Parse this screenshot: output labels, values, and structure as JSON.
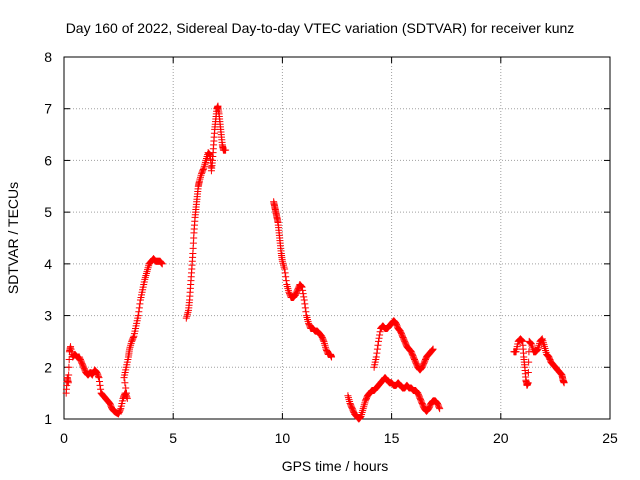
{
  "chart_data": {
    "type": "scatter",
    "title": "Day 160 of 2022, Sidereal Day-to-day VTEC variation (SDTVAR) for receiver kunz",
    "xlabel": "GPS time / hours",
    "ylabel": "SDTVAR / TECUs",
    "xlim": [
      0,
      25
    ],
    "ylim": [
      1,
      8
    ],
    "xticks": [
      "0",
      "5",
      "10",
      "15",
      "20",
      "25"
    ],
    "yticks": [
      "1",
      "2",
      "3",
      "4",
      "5",
      "6",
      "7",
      "8"
    ],
    "grid": true,
    "marker": "+",
    "color": "#ff0000",
    "series": [
      {
        "name": "SDTVAR",
        "segments": [
          [
            [
              0.1,
              1.5
            ],
            [
              0.15,
              1.8
            ],
            [
              0.2,
              1.7
            ],
            [
              0.25,
              2.3
            ],
            [
              0.3,
              2.4
            ],
            [
              0.4,
              2.2
            ],
            [
              0.5,
              2.25
            ],
            [
              0.6,
              2.2
            ],
            [
              0.7,
              2.2
            ],
            [
              0.8,
              2.1
            ],
            [
              0.9,
              2.0
            ],
            [
              1.0,
              1.9
            ],
            [
              1.1,
              1.85
            ],
            [
              1.2,
              1.9
            ],
            [
              1.3,
              1.85
            ],
            [
              1.4,
              1.95
            ],
            [
              1.5,
              1.9
            ],
            [
              1.6,
              1.8
            ],
            [
              1.7,
              1.5
            ],
            [
              1.8,
              1.45
            ],
            [
              1.9,
              1.4
            ],
            [
              2.0,
              1.35
            ],
            [
              2.1,
              1.3
            ],
            [
              2.2,
              1.2
            ],
            [
              2.3,
              1.15
            ],
            [
              2.4,
              1.12
            ],
            [
              2.5,
              1.1
            ],
            [
              2.6,
              1.2
            ],
            [
              2.7,
              1.4
            ],
            [
              2.8,
              1.5
            ],
            [
              2.9,
              1.4
            ],
            [
              2.75,
              1.8
            ],
            [
              2.85,
              2.0
            ],
            [
              2.95,
              2.2
            ],
            [
              3.0,
              2.35
            ],
            [
              3.1,
              2.5
            ],
            [
              3.2,
              2.6
            ],
            [
              3.3,
              2.8
            ],
            [
              3.4,
              3.0
            ],
            [
              3.5,
              3.3
            ],
            [
              3.6,
              3.5
            ],
            [
              3.7,
              3.7
            ],
            [
              3.8,
              3.85
            ],
            [
              3.9,
              4.0
            ],
            [
              4.0,
              4.05
            ],
            [
              4.1,
              4.1
            ],
            [
              4.2,
              4.05
            ],
            [
              4.3,
              4.05
            ],
            [
              4.4,
              4.05
            ],
            [
              4.5,
              4.0
            ]
          ],
          [
            [
              5.6,
              2.95
            ],
            [
              5.7,
              3.1
            ],
            [
              5.75,
              3.3
            ],
            [
              5.8,
              3.6
            ],
            [
              5.85,
              3.9
            ],
            [
              5.9,
              4.2
            ],
            [
              5.95,
              4.6
            ],
            [
              6.0,
              4.9
            ],
            [
              6.05,
              5.1
            ],
            [
              6.1,
              5.3
            ],
            [
              6.15,
              5.5
            ],
            [
              6.2,
              5.6
            ],
            [
              6.3,
              5.75
            ],
            [
              6.4,
              5.85
            ],
            [
              6.5,
              6.0
            ],
            [
              6.6,
              6.15
            ],
            [
              6.7,
              6.1
            ],
            [
              6.75,
              5.8
            ],
            [
              6.8,
              6.0
            ],
            [
              6.85,
              6.3
            ],
            [
              6.9,
              6.6
            ],
            [
              6.95,
              6.8
            ],
            [
              7.0,
              7.0
            ],
            [
              7.05,
              7.05
            ],
            [
              7.1,
              6.9
            ],
            [
              7.15,
              6.7
            ],
            [
              7.2,
              6.5
            ],
            [
              7.25,
              6.3
            ],
            [
              7.3,
              6.2
            ],
            [
              7.4,
              6.2
            ]
          ],
          [
            [
              9.6,
              5.2
            ],
            [
              9.65,
              5.1
            ],
            [
              9.7,
              5.0
            ],
            [
              9.75,
              4.9
            ],
            [
              9.8,
              4.8
            ],
            [
              9.85,
              4.6
            ],
            [
              9.9,
              4.4
            ],
            [
              9.95,
              4.2
            ],
            [
              10.0,
              4.05
            ],
            [
              10.1,
              3.9
            ],
            [
              10.2,
              3.6
            ],
            [
              10.3,
              3.45
            ],
            [
              10.4,
              3.35
            ],
            [
              10.5,
              3.35
            ],
            [
              10.6,
              3.4
            ],
            [
              10.7,
              3.5
            ],
            [
              10.8,
              3.6
            ],
            [
              10.9,
              3.55
            ],
            [
              11.0,
              3.3
            ],
            [
              11.1,
              3.0
            ],
            [
              11.2,
              2.85
            ],
            [
              11.3,
              2.75
            ],
            [
              11.4,
              2.75
            ],
            [
              11.5,
              2.7
            ],
            [
              11.6,
              2.7
            ],
            [
              11.7,
              2.65
            ],
            [
              11.8,
              2.6
            ],
            [
              11.9,
              2.5
            ],
            [
              12.0,
              2.35
            ],
            [
              12.1,
              2.25
            ],
            [
              12.2,
              2.25
            ],
            [
              12.25,
              2.2
            ]
          ],
          [
            [
              13.0,
              1.45
            ],
            [
              13.1,
              1.3
            ],
            [
              13.2,
              1.2
            ],
            [
              13.3,
              1.1
            ],
            [
              13.4,
              1.05
            ],
            [
              13.5,
              1.0
            ],
            [
              13.6,
              1.05
            ],
            [
              13.7,
              1.2
            ],
            [
              13.8,
              1.35
            ],
            [
              13.9,
              1.45
            ],
            [
              14.0,
              1.5
            ],
            [
              14.1,
              1.55
            ],
            [
              14.2,
              1.55
            ],
            [
              14.3,
              1.6
            ],
            [
              14.4,
              1.65
            ],
            [
              14.5,
              1.7
            ],
            [
              14.6,
              1.75
            ],
            [
              14.7,
              1.8
            ],
            [
              14.8,
              1.75
            ],
            [
              14.9,
              1.7
            ],
            [
              15.0,
              1.7
            ],
            [
              15.1,
              1.65
            ],
            [
              15.2,
              1.65
            ],
            [
              15.3,
              1.7
            ],
            [
              15.4,
              1.65
            ],
            [
              15.5,
              1.6
            ],
            [
              15.6,
              1.6
            ],
            [
              15.7,
              1.65
            ],
            [
              15.8,
              1.6
            ],
            [
              15.9,
              1.6
            ],
            [
              16.0,
              1.55
            ],
            [
              16.1,
              1.55
            ],
            [
              16.2,
              1.5
            ],
            [
              16.3,
              1.4
            ],
            [
              16.4,
              1.3
            ],
            [
              16.5,
              1.2
            ],
            [
              16.6,
              1.15
            ],
            [
              16.7,
              1.2
            ],
            [
              16.8,
              1.3
            ],
            [
              16.9,
              1.35
            ],
            [
              17.0,
              1.35
            ],
            [
              17.1,
              1.3
            ],
            [
              17.2,
              1.2
            ]
          ],
          [
            [
              14.2,
              2.0
            ],
            [
              14.3,
              2.2
            ],
            [
              14.4,
              2.5
            ],
            [
              14.5,
              2.75
            ],
            [
              14.6,
              2.8
            ],
            [
              14.7,
              2.75
            ],
            [
              14.8,
              2.75
            ],
            [
              14.9,
              2.8
            ],
            [
              15.0,
              2.85
            ],
            [
              15.1,
              2.9
            ],
            [
              15.2,
              2.85
            ],
            [
              15.3,
              2.75
            ],
            [
              15.4,
              2.7
            ],
            [
              15.5,
              2.6
            ],
            [
              15.6,
              2.5
            ],
            [
              15.7,
              2.4
            ],
            [
              15.8,
              2.35
            ],
            [
              15.9,
              2.3
            ],
            [
              16.0,
              2.2
            ],
            [
              16.1,
              2.1
            ],
            [
              16.2,
              2.0
            ],
            [
              16.3,
              1.95
            ],
            [
              16.4,
              2.0
            ],
            [
              16.5,
              2.1
            ],
            [
              16.6,
              2.2
            ],
            [
              16.7,
              2.25
            ],
            [
              16.8,
              2.3
            ],
            [
              16.9,
              2.35
            ]
          ],
          [
            [
              20.6,
              2.3
            ],
            [
              20.7,
              2.3
            ],
            [
              20.8,
              2.5
            ],
            [
              20.9,
              2.55
            ],
            [
              21.0,
              2.5
            ],
            [
              21.05,
              2.2
            ],
            [
              21.1,
              2.0
            ],
            [
              21.15,
              1.75
            ],
            [
              21.2,
              1.65
            ],
            [
              21.25,
              1.7
            ],
            [
              21.3,
              2.5
            ],
            [
              21.4,
              2.45
            ],
            [
              21.5,
              2.3
            ],
            [
              21.6,
              2.3
            ],
            [
              21.7,
              2.35
            ],
            [
              21.8,
              2.5
            ],
            [
              21.9,
              2.55
            ],
            [
              22.0,
              2.4
            ],
            [
              22.1,
              2.25
            ],
            [
              22.2,
              2.2
            ],
            [
              22.3,
              2.1
            ],
            [
              22.4,
              2.05
            ],
            [
              22.5,
              2.0
            ],
            [
              22.6,
              1.95
            ],
            [
              22.7,
              1.9
            ],
            [
              22.8,
              1.85
            ],
            [
              22.85,
              1.75
            ],
            [
              22.9,
              1.7
            ]
          ]
        ]
      }
    ]
  }
}
